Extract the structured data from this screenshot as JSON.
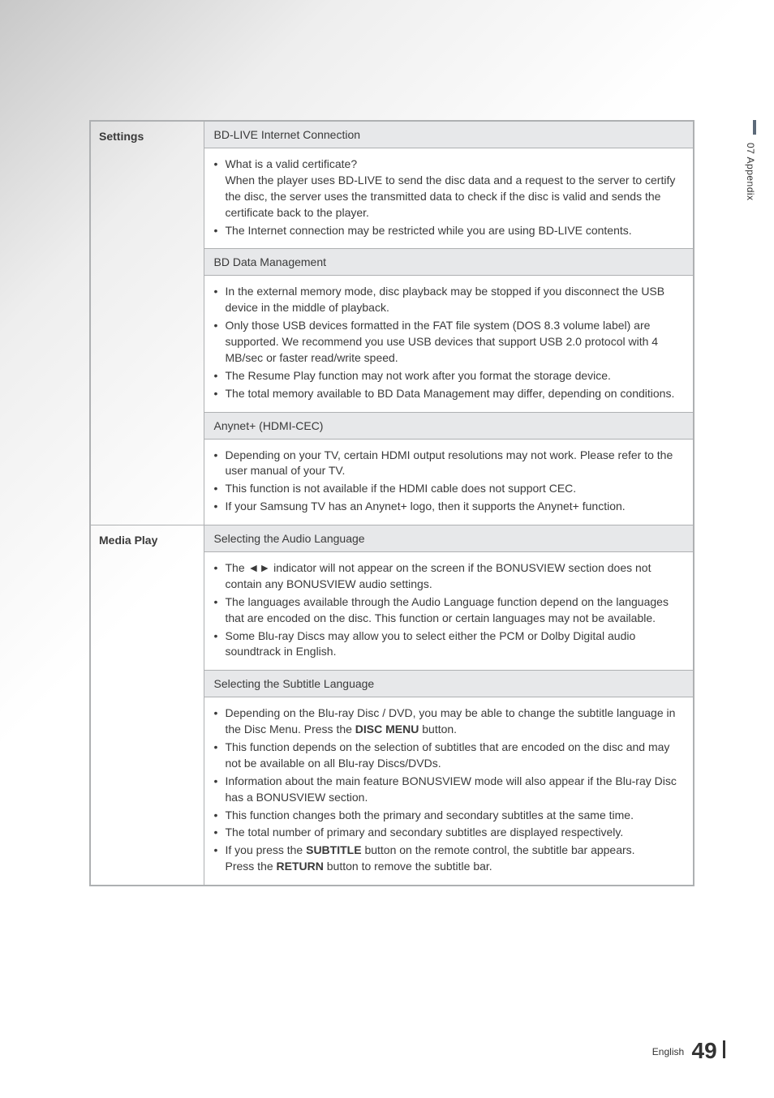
{
  "sidebar": {
    "label": "07   Appendix"
  },
  "footer": {
    "language": "English",
    "page": "49"
  },
  "sections": [
    {
      "label": "Settings",
      "blocks": [
        {
          "type": "heading",
          "text": "BD-LIVE Internet Connection"
        },
        {
          "type": "body",
          "items": [
            {
              "lines": [
                "What is a valid certificate?",
                "When the player uses BD-LIVE to send the disc data and a request to the server to certify the disc, the server uses the transmitted data to check if the disc is valid and sends the certificate back to the player."
              ]
            },
            {
              "lines": [
                "The Internet connection may be restricted while you are using BD-LIVE contents."
              ]
            }
          ]
        },
        {
          "type": "heading",
          "text": "BD Data Management"
        },
        {
          "type": "body",
          "items": [
            {
              "lines": [
                "In the external memory mode, disc playback may be stopped if you disconnect the USB device in the middle of playback."
              ]
            },
            {
              "lines": [
                "Only those USB devices formatted in the FAT file system (DOS 8.3 volume label) are supported. We recommend you use USB devices that support USB 2.0 protocol with 4 MB/sec or faster read/write speed."
              ]
            },
            {
              "lines": [
                "The Resume Play function may not work after you format the storage device."
              ]
            },
            {
              "lines": [
                "The total memory available to BD Data Management may differ, depending on conditions."
              ]
            }
          ]
        },
        {
          "type": "heading",
          "text": "Anynet+ (HDMI-CEC)"
        },
        {
          "type": "body",
          "items": [
            {
              "lines": [
                "Depending on your TV, certain HDMI output resolutions may not work. Please refer to the user manual of your TV."
              ]
            },
            {
              "lines": [
                "This function is not available if the HDMI cable does not support CEC."
              ]
            },
            {
              "lines": [
                "If your Samsung TV has an Anynet+ logo, then it supports the Anynet+ function."
              ]
            }
          ]
        }
      ]
    },
    {
      "label": "Media Play",
      "blocks": [
        {
          "type": "heading",
          "text": "Selecting the Audio Language"
        },
        {
          "type": "body",
          "items": [
            {
              "lines": [
                "The ◄► indicator will not appear on the screen if the BONUSVIEW section does not contain any BONUSVIEW audio settings."
              ]
            },
            {
              "lines": [
                "The languages available through the Audio Language function depend on the languages that are encoded on the disc. This function or certain languages may not be available."
              ]
            },
            {
              "lines": [
                "Some Blu-ray Discs may allow you to select either the PCM or Dolby Digital audio soundtrack in English."
              ]
            }
          ]
        },
        {
          "type": "heading",
          "text": "Selecting the Subtitle Language"
        },
        {
          "type": "body",
          "items": [
            {
              "html": "Depending on the Blu-ray Disc / DVD, you may be able to change the subtitle language in the Disc Menu. Press the <b class='inline'>DISC MENU</b> button."
            },
            {
              "lines": [
                "This function depends on the selection of subtitles that are encoded on the disc and may not be available on all Blu-ray Discs/DVDs."
              ]
            },
            {
              "lines": [
                "Information about the main feature BONUSVIEW mode will also appear if the Blu-ray Disc has a BONUSVIEW section."
              ]
            },
            {
              "lines": [
                "This function changes both the primary and secondary subtitles at the same time."
              ]
            },
            {
              "lines": [
                "The total number of primary and secondary subtitles are displayed respectively."
              ]
            },
            {
              "html": "If you press the <b class='inline'>SUBTITLE</b> button on the remote control, the subtitle bar appears.<br>Press the <b class='inline'>RETURN</b> button to remove the subtitle bar."
            }
          ]
        }
      ]
    }
  ]
}
